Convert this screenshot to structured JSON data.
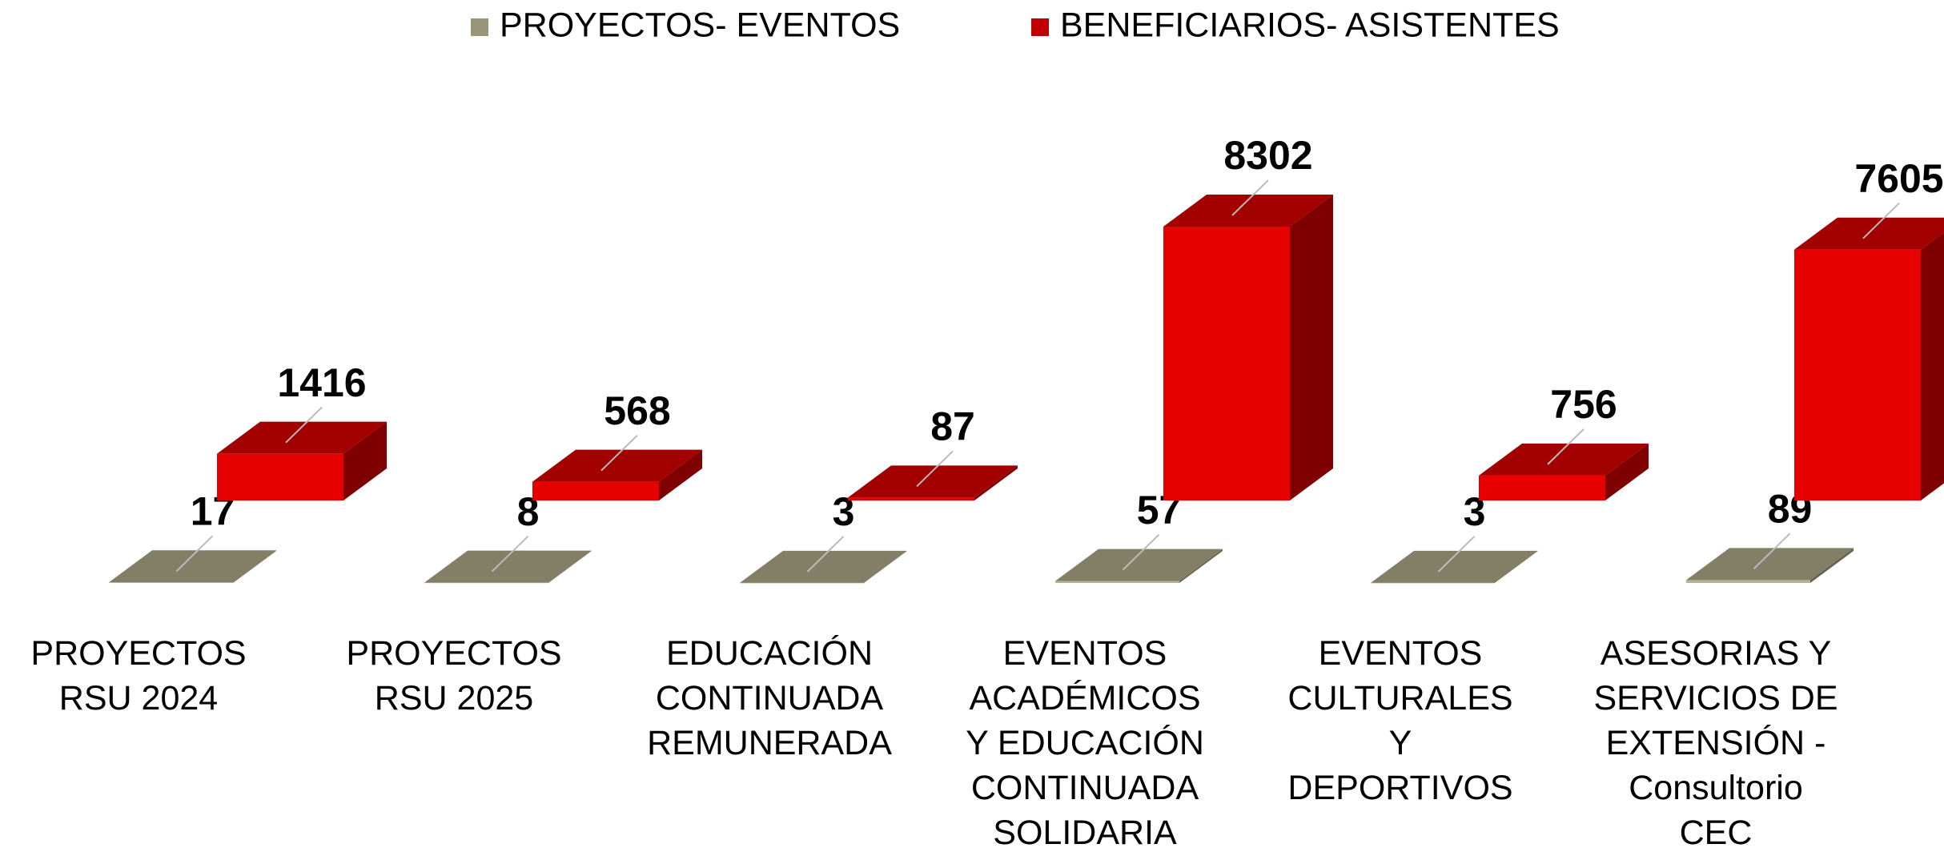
{
  "chart_data": {
    "type": "bar3d",
    "categories": [
      "PROYECTOS\nRSU 2024",
      "PROYECTOS\nRSU 2025",
      "EDUCACIÓN\nCONTINUADA\nREMUNERADA",
      "EVENTOS\nACADÉMICOS\nY EDUCACIÓN\nCONTINUADA\nSOLIDARIA",
      "EVENTOS\nCULTURALES\nY\nDEPORTIVOS",
      "ASESORIAS  Y\nSERVICIOS DE\nEXTENSIÓN -\nConsultorio\nCEC"
    ],
    "series": [
      {
        "name": "PROYECTOS- EVENTOS",
        "color": "#9a9478",
        "values": [
          17,
          8,
          3,
          57,
          3,
          89
        ]
      },
      {
        "name": "BENEFICIARIOS- ASISTENTES",
        "color": "#c00000",
        "values": [
          1416,
          568,
          87,
          8302,
          756,
          7605
        ]
      }
    ],
    "legend": "top"
  }
}
